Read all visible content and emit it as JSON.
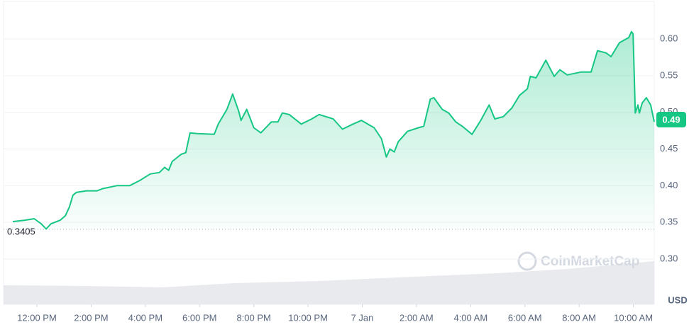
{
  "chart_data": {
    "type": "line",
    "color": "#16c784",
    "x": [
      -0.89,
      -0.44,
      -0.1,
      0.16,
      0.34,
      0.52,
      0.86,
      1.05,
      1.2,
      1.33,
      1.46,
      1.83,
      2.22,
      2.43,
      2.95,
      3.42,
      3.79,
      4.18,
      4.52,
      4.71,
      4.86,
      4.99,
      5.33,
      5.49,
      5.65,
      5.91,
      6.54,
      6.69,
      7.01,
      7.22,
      7.45,
      7.53,
      7.74,
      8.0,
      8.26,
      8.65,
      8.89,
      9.05,
      9.31,
      9.75,
      10.14,
      10.41,
      10.93,
      11.27,
      11.66,
      11.97,
      12.44,
      12.71,
      12.89,
      13.02,
      13.18,
      13.33,
      13.67,
      14.07,
      14.27,
      14.51,
      14.64,
      14.95,
      15.19,
      15.45,
      15.69,
      16.05,
      16.37,
      16.68,
      16.89,
      17.2,
      17.52,
      17.8,
      18.09,
      18.2,
      18.41,
      18.77,
      19.08,
      19.29,
      19.56,
      20.08,
      20.44,
      20.68,
      20.99,
      21.18,
      21.49,
      21.83,
      21.93,
      21.99,
      22.07,
      22.17,
      22.22,
      22.33,
      22.48,
      22.64,
      22.77
    ],
    "values": [
      0.351,
      0.353,
      0.355,
      0.348,
      0.341,
      0.348,
      0.353,
      0.359,
      0.371,
      0.387,
      0.391,
      0.393,
      0.393,
      0.396,
      0.4,
      0.4,
      0.407,
      0.416,
      0.418,
      0.425,
      0.421,
      0.433,
      0.443,
      0.445,
      0.472,
      0.471,
      0.47,
      0.484,
      0.504,
      0.525,
      0.501,
      0.489,
      0.504,
      0.479,
      0.472,
      0.487,
      0.487,
      0.499,
      0.497,
      0.484,
      0.491,
      0.497,
      0.491,
      0.477,
      0.484,
      0.489,
      0.479,
      0.464,
      0.439,
      0.45,
      0.446,
      0.46,
      0.474,
      0.479,
      0.481,
      0.518,
      0.52,
      0.504,
      0.499,
      0.487,
      0.481,
      0.47,
      0.489,
      0.51,
      0.491,
      0.494,
      0.506,
      0.523,
      0.532,
      0.549,
      0.547,
      0.571,
      0.549,
      0.558,
      0.551,
      0.555,
      0.555,
      0.584,
      0.581,
      0.576,
      0.595,
      0.602,
      0.61,
      0.607,
      0.499,
      0.51,
      0.499,
      0.513,
      0.52,
      0.51,
      0.487
    ],
    "xlim": [
      -1.23,
      22.77
    ],
    "ylim": [
      0.24,
      0.65
    ],
    "xticks": [
      {
        "value": 0,
        "label": "12:00 PM"
      },
      {
        "value": 2,
        "label": "2:00 PM"
      },
      {
        "value": 4,
        "label": "4:00 PM"
      },
      {
        "value": 6,
        "label": "6:00 PM"
      },
      {
        "value": 8,
        "label": "8:00 PM"
      },
      {
        "value": 10,
        "label": "10:00 PM"
      },
      {
        "value": 12,
        "label": "7 Jan"
      },
      {
        "value": 14,
        "label": "2:00 AM"
      },
      {
        "value": 16,
        "label": "4:00 AM"
      },
      {
        "value": 18,
        "label": "6:00 AM"
      },
      {
        "value": 20,
        "label": "8:00 AM"
      },
      {
        "value": 22,
        "label": "10:00 AM"
      }
    ],
    "yticks": [
      {
        "value": 0.3,
        "label": "0.30"
      },
      {
        "value": 0.35,
        "label": "0.35"
      },
      {
        "value": 0.4,
        "label": "0.40"
      },
      {
        "value": 0.45,
        "label": "0.45"
      },
      {
        "value": 0.5,
        "label": "0.50"
      },
      {
        "value": 0.55,
        "label": "0.55"
      },
      {
        "value": 0.6,
        "label": "0.60"
      }
    ],
    "grid": true,
    "reference_line": 0.3405,
    "current_price": 0.49,
    "currency": "USD",
    "watermark": "CoinMarketCap"
  }
}
